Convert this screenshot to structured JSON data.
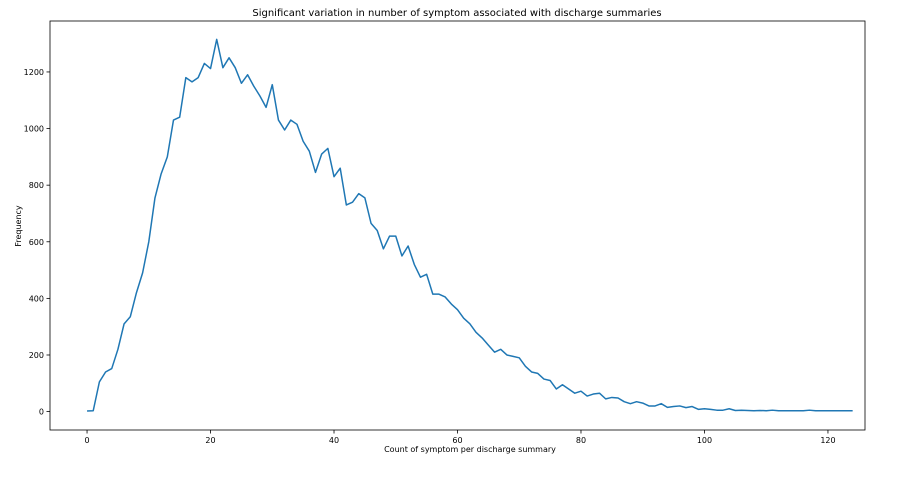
{
  "chart_data": {
    "type": "line",
    "title": "Significant variation in number of symptom associated with discharge summaries",
    "xlabel": "Count of symptom per discharge summary",
    "ylabel": "Frequency",
    "xlim": [
      -6,
      126
    ],
    "ylim": [
      -65,
      1380
    ],
    "xticks": [
      0,
      20,
      40,
      60,
      80,
      100,
      120
    ],
    "yticks": [
      0,
      200,
      400,
      600,
      800,
      1000,
      1200
    ],
    "grid": false,
    "legend": "none",
    "line_color": "#1f77b4",
    "series": [
      {
        "x": [
          0,
          1,
          2,
          3,
          4,
          5,
          6,
          7,
          8,
          9,
          10,
          11,
          12,
          13,
          14,
          15,
          16,
          17,
          18,
          19,
          20,
          21,
          22,
          23,
          24,
          25,
          26,
          27,
          28,
          29,
          30,
          31,
          32,
          33,
          34,
          35,
          36,
          37,
          38,
          39,
          40,
          41,
          42,
          43,
          44,
          45,
          46,
          47,
          48,
          49,
          50,
          51,
          52,
          53,
          54,
          55,
          56,
          57,
          58,
          59,
          60,
          61,
          62,
          63,
          64,
          65,
          66,
          67,
          68,
          69,
          70,
          71,
          72,
          73,
          74,
          75,
          76,
          77,
          78,
          79,
          80,
          81,
          82,
          83,
          84,
          85,
          86,
          87,
          88,
          89,
          90,
          91,
          92,
          93,
          94,
          95,
          96,
          97,
          98,
          99,
          100,
          101,
          102,
          103,
          104,
          105,
          106,
          107,
          108,
          109,
          110,
          111,
          112,
          113,
          114,
          115,
          116,
          117,
          118,
          119,
          120,
          121,
          122,
          123,
          124
        ],
        "values": [
          2,
          3,
          105,
          140,
          152,
          220,
          310,
          335,
          420,
          490,
          600,
          755,
          840,
          900,
          1030,
          1040,
          1180,
          1165,
          1180,
          1230,
          1212,
          1315,
          1215,
          1250,
          1215,
          1160,
          1190,
          1150,
          1115,
          1075,
          1155,
          1030,
          995,
          1030,
          1015,
          955,
          920,
          845,
          910,
          930,
          830,
          860,
          730,
          740,
          770,
          755,
          665,
          640,
          575,
          620,
          620,
          550,
          585,
          520,
          475,
          485,
          415,
          415,
          405,
          380,
          360,
          330,
          310,
          280,
          260,
          235,
          210,
          220,
          200,
          195,
          190,
          160,
          140,
          135,
          115,
          110,
          80,
          95,
          80,
          65,
          72,
          55,
          62,
          65,
          45,
          50,
          48,
          35,
          28,
          35,
          30,
          20,
          20,
          28,
          15,
          18,
          20,
          14,
          18,
          8,
          10,
          8,
          5,
          5,
          10,
          4,
          5,
          4,
          3,
          4,
          3,
          5,
          3,
          3,
          3,
          3,
          3,
          5,
          3,
          3,
          3,
          3,
          3,
          3,
          3
        ]
      }
    ]
  }
}
